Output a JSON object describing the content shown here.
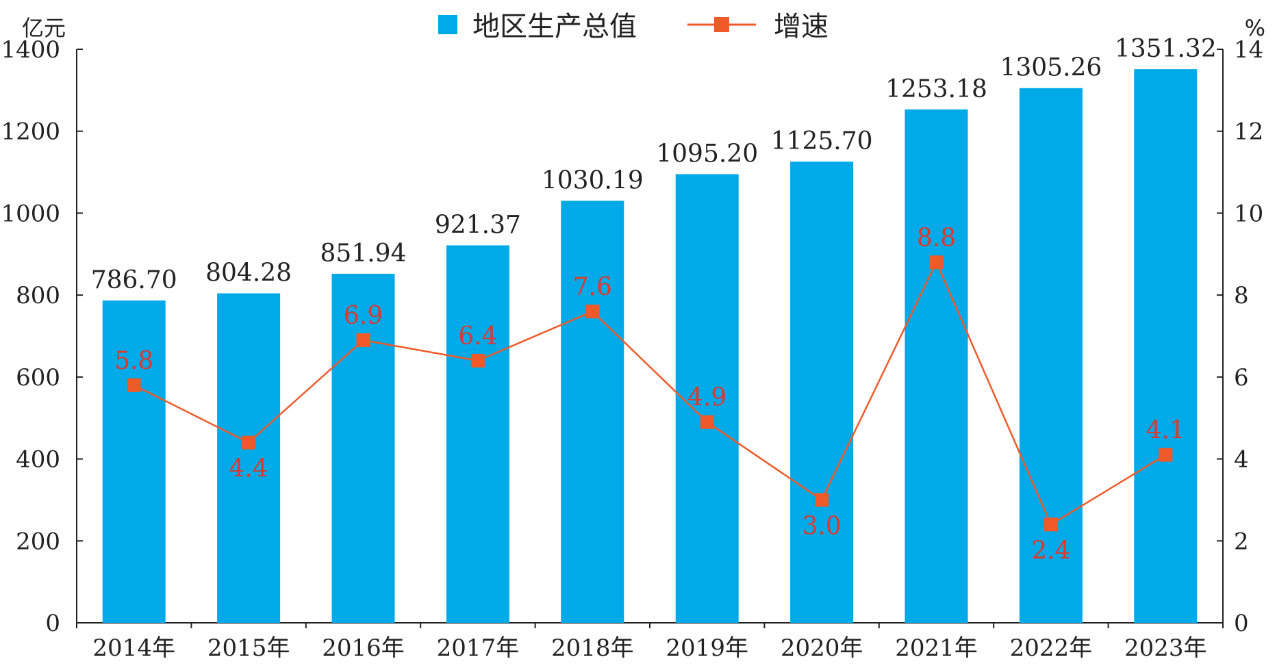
{
  "chart_data": {
    "type": "bar",
    "categories": [
      "2014年",
      "2015年",
      "2016年",
      "2017年",
      "2018年",
      "2019年",
      "2020年",
      "2021年",
      "2022年",
      "2023年"
    ],
    "series": [
      {
        "name": "地区生产总值",
        "type": "bar",
        "axis": "left",
        "values": [
          786.7,
          804.28,
          851.94,
          921.37,
          1030.19,
          1095.2,
          1125.7,
          1253.18,
          1305.26,
          1351.32
        ],
        "labels": [
          "786.70",
          "804.28",
          "851.94",
          "921.37",
          "1030.19",
          "1095.20",
          "1125.70",
          "1253.18",
          "1305.26",
          "1351.32"
        ],
        "color": "#00a9e8"
      },
      {
        "name": "增速",
        "type": "line",
        "axis": "right",
        "values": [
          5.8,
          4.4,
          6.9,
          6.4,
          7.6,
          4.9,
          3.0,
          8.8,
          2.4,
          4.1
        ],
        "labels": [
          "5.8",
          "4.4",
          "6.9",
          "6.4",
          "7.6",
          "4.9",
          "3.0",
          "8.8",
          "2.4",
          "4.1"
        ],
        "label_position": [
          "above",
          "below",
          "above",
          "above",
          "above",
          "above",
          "below",
          "above",
          "below",
          "above"
        ],
        "color": "#f05a28"
      }
    ],
    "y_left": {
      "unit": "亿元",
      "min": 0,
      "max": 1400,
      "ticks": [
        "0",
        "200",
        "400",
        "600",
        "800",
        "1000",
        "1200",
        "1400"
      ]
    },
    "y_right": {
      "unit": "%",
      "min": 0,
      "max": 14,
      "ticks": [
        "0",
        "2",
        "4",
        "6",
        "8",
        "10",
        "12",
        "14"
      ]
    },
    "legend": {
      "placement": "top-center"
    },
    "grid": false,
    "label_color": "#e0382b"
  }
}
